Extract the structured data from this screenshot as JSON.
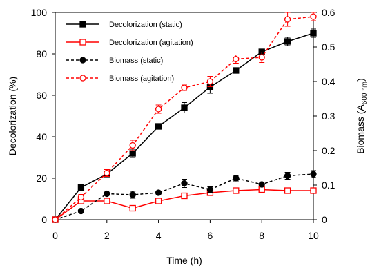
{
  "chart_data": {
    "type": "line",
    "xlabel": "Time (h)",
    "ylabel_left": "Decolorization (%)",
    "ylabel_right_main": "Biomass (A",
    "ylabel_right_sub": "600 nm",
    "ylabel_right_end": ")",
    "x_ticks": [
      "0",
      "2",
      "4",
      "6",
      "8",
      "10"
    ],
    "y_left_ticks": [
      "0",
      "20",
      "40",
      "60",
      "80",
      "100"
    ],
    "y_right_ticks": [
      "0",
      "0.1",
      "0.2",
      "0.3",
      "0.4",
      "0.5",
      "0.6"
    ],
    "xlim": [
      0,
      10
    ],
    "ylim_left": [
      0,
      100
    ],
    "ylim_right": [
      0,
      0.6
    ],
    "grid": false,
    "legend_position": "top-left",
    "x": [
      0,
      1,
      2,
      3,
      4,
      5,
      6,
      7,
      8,
      9,
      10
    ],
    "series": [
      {
        "name": "Decolorization (static)",
        "axis": "left",
        "color": "#000000",
        "line_style": "solid",
        "marker": "square",
        "marker_fill": "filled",
        "values": [
          0,
          15.5,
          22,
          32,
          45,
          54,
          64,
          72,
          81,
          86,
          90
        ],
        "errors": [
          0,
          0,
          0,
          2,
          0,
          2.5,
          3,
          0,
          0,
          2,
          2
        ]
      },
      {
        "name": "Decolorization (agitation)",
        "axis": "left",
        "color": "#ff0000",
        "line_style": "solid",
        "marker": "square",
        "marker_fill": "open",
        "values": [
          0,
          9,
          9,
          5.5,
          9,
          11.5,
          13,
          14,
          14.5,
          14,
          14
        ],
        "errors": [
          0,
          0,
          0,
          0,
          0,
          0,
          0,
          0,
          0,
          0,
          0
        ]
      },
      {
        "name": "Biomass (static)",
        "axis": "right",
        "color": "#000000",
        "line_style": "dashed",
        "marker": "circle",
        "marker_fill": "filled",
        "values": [
          0,
          0.025,
          0.075,
          0.072,
          0.078,
          0.105,
          0.087,
          0.12,
          0.102,
          0.127,
          0.132
        ],
        "errors": [
          0,
          0,
          0,
          0.01,
          0,
          0.012,
          0.008,
          0.008,
          0,
          0.01,
          0.01
        ]
      },
      {
        "name": "Biomass (agitation)",
        "axis": "right",
        "color": "#ff0000",
        "line_style": "dashed",
        "marker": "circle",
        "marker_fill": "open",
        "values": [
          0,
          0.065,
          0.135,
          0.215,
          0.32,
          0.382,
          0.4,
          0.465,
          0.47,
          0.58,
          0.588
        ],
        "errors": [
          0,
          0.008,
          0.01,
          0.015,
          0.012,
          0.008,
          0.015,
          0.012,
          0.015,
          0.02,
          0.012
        ]
      }
    ]
  }
}
